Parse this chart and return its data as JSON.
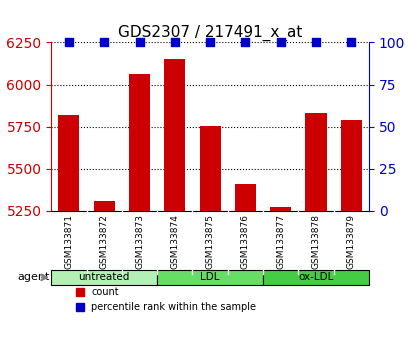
{
  "title": "GDS2307 / 217491_x_at",
  "samples": [
    "GSM133871",
    "GSM133872",
    "GSM133873",
    "GSM133874",
    "GSM133875",
    "GSM133876",
    "GSM133877",
    "GSM133878",
    "GSM133879"
  ],
  "counts": [
    5820,
    5310,
    6060,
    6150,
    5755,
    5410,
    5270,
    5830,
    5790
  ],
  "percentiles": [
    100,
    100,
    100,
    100,
    100,
    100,
    100,
    100,
    100
  ],
  "ylim_left": [
    5250,
    6250
  ],
  "ylim_right": [
    0,
    100
  ],
  "yticks_left": [
    5250,
    5500,
    5750,
    6000,
    6250
  ],
  "yticks_right": [
    0,
    25,
    50,
    75,
    100
  ],
  "groups": [
    {
      "label": "untreated",
      "indices": [
        0,
        1,
        2
      ],
      "color": "#b3f0b3"
    },
    {
      "label": "LDL",
      "indices": [
        3,
        4,
        5
      ],
      "color": "#66dd66"
    },
    {
      "label": "ox-LDL",
      "indices": [
        6,
        7,
        8
      ],
      "color": "#44cc44"
    }
  ],
  "bar_color": "#cc0000",
  "dot_color": "#0000cc",
  "bar_width": 0.6,
  "bg_color": "#d3d3d3",
  "plot_bg": "#ffffff",
  "legend_count_color": "#cc0000",
  "legend_pct_color": "#0000cc",
  "left_tick_color": "#cc0000",
  "right_tick_color": "#0000cc"
}
